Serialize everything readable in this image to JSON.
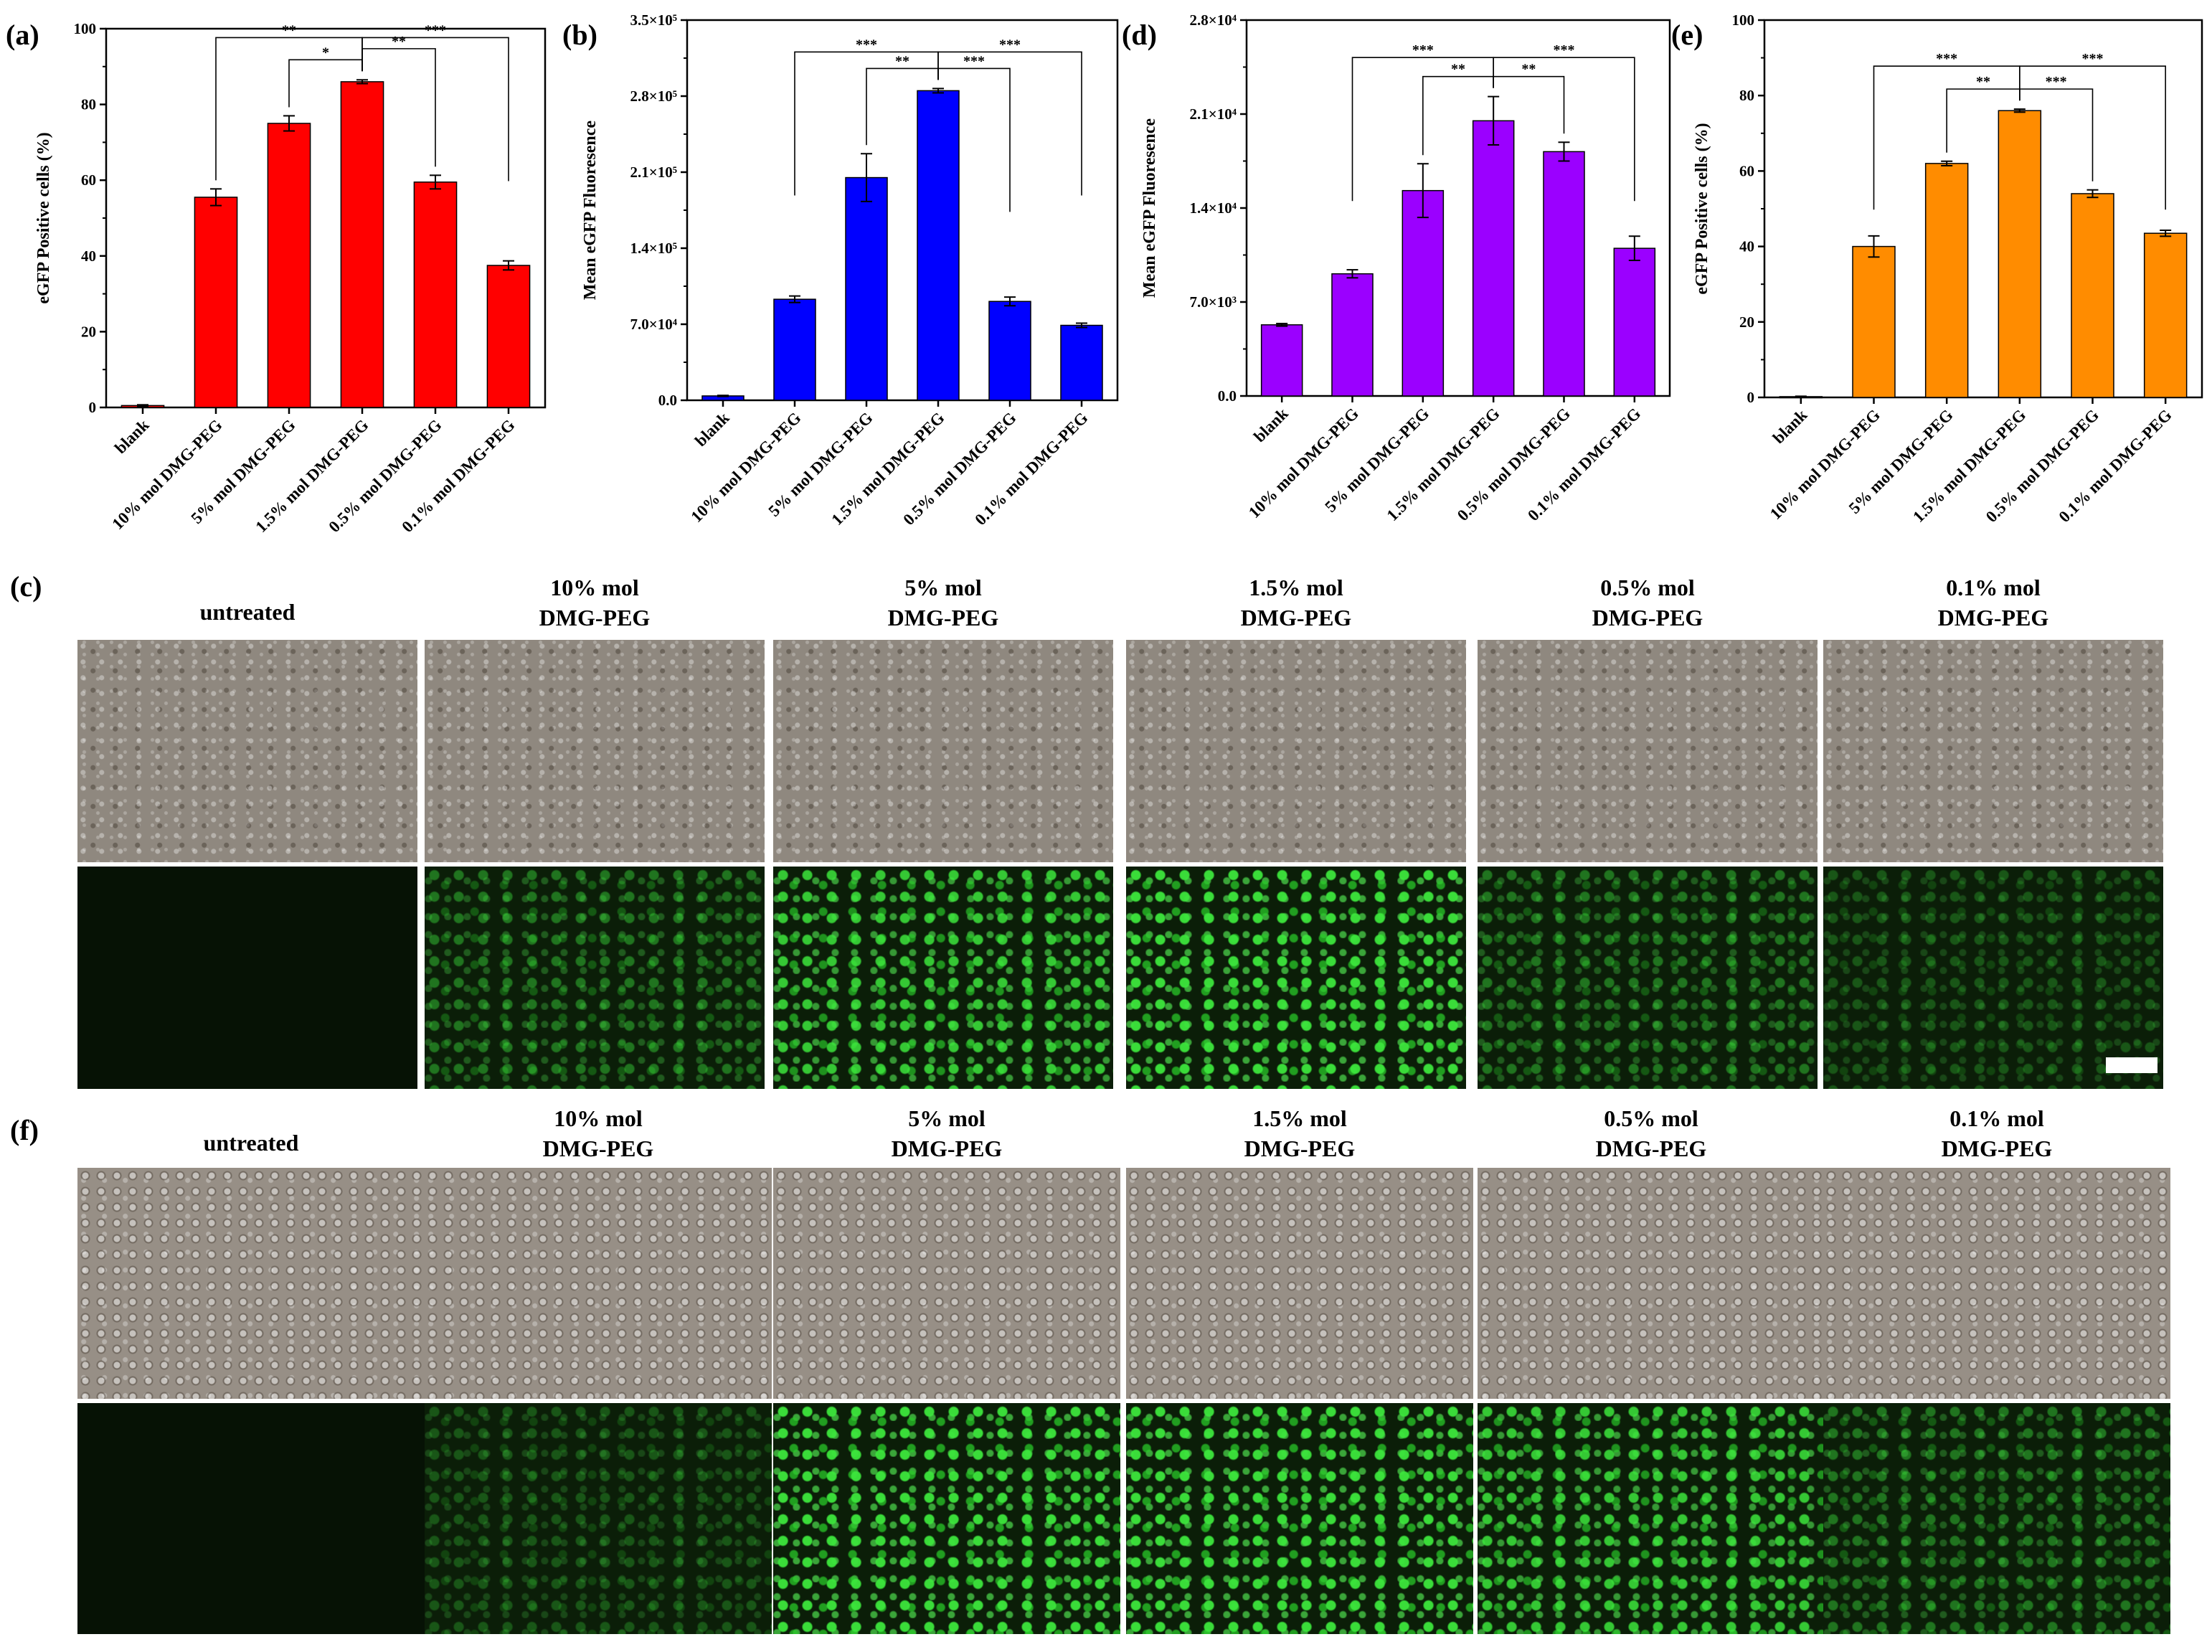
{
  "chart_data": [
    {
      "panel": "(a)",
      "type": "bar",
      "categories": [
        "blank",
        "10% mol DMG-PEG",
        "5% mol DMG-PEG",
        "1.5% mol DMG-PEG",
        "0.5% mol DMG-PEG",
        "0.1% mol DMG-PEG"
      ],
      "values": [
        0.5,
        55.5,
        75,
        86,
        59.5,
        37.5
      ],
      "errors": [
        0.2,
        2.2,
        2.0,
        0.5,
        1.8,
        1.2
      ],
      "ylabel": "eGFP Positive cells (%)",
      "ylim": [
        0,
        100
      ],
      "yticks": [
        0,
        20,
        40,
        60,
        80,
        100
      ],
      "ytick_labels": [
        "0",
        "20",
        "40",
        "60",
        "80",
        "100"
      ],
      "bar_color": "#ff0000",
      "significance": [
        {
          "from": 1,
          "to": 3,
          "label": "**",
          "level": 3
        },
        {
          "from": 2,
          "to": 3,
          "label": "*",
          "level": 1
        },
        {
          "from": 3,
          "to": 4,
          "label": "**",
          "level": 2
        },
        {
          "from": 3,
          "to": 5,
          "label": "***",
          "level": 3
        }
      ]
    },
    {
      "panel": "(b)",
      "type": "bar",
      "categories": [
        "blank",
        "10% mol DMG-PEG",
        "5% mol DMG-PEG",
        "1.5% mol DMG-PEG",
        "0.5% mol DMG-PEG",
        "0.1% mol DMG-PEG"
      ],
      "values": [
        4000,
        93000,
        205000,
        285000,
        91000,
        69000
      ],
      "errors": [
        500,
        3000,
        22000,
        2000,
        4000,
        2000
      ],
      "ylabel": "Mean eGFP Fluoresence",
      "ylim": [
        0,
        350000
      ],
      "yticks": [
        0,
        70000,
        140000,
        210000,
        280000,
        350000
      ],
      "ytick_labels": [
        "0.0",
        "7.0×10⁴",
        "1.4×10⁵",
        "2.1×10⁵",
        "2.8×10⁵",
        "3.5×10⁵"
      ],
      "bar_color": "#0000ff",
      "significance": [
        {
          "from": 1,
          "to": 3,
          "label": "***",
          "level": 2
        },
        {
          "from": 2,
          "to": 3,
          "label": "**",
          "level": 1
        },
        {
          "from": 3,
          "to": 4,
          "label": "***",
          "level": 1
        },
        {
          "from": 3,
          "to": 5,
          "label": "***",
          "level": 2
        }
      ]
    },
    {
      "panel": "(d)",
      "type": "bar",
      "categories": [
        "blank",
        "10% mol DMG-PEG",
        "5% mol DMG-PEG",
        "1.5% mol DMG-PEG",
        "0.5% mol DMG-PEG",
        "0.1% mol DMG-PEG"
      ],
      "values": [
        5300,
        9100,
        15300,
        20500,
        18200,
        11000
      ],
      "errors": [
        100,
        300,
        2000,
        1800,
        700,
        900
      ],
      "ylabel": "Mean eGFP Fluoresence",
      "ylim": [
        0,
        28000
      ],
      "yticks": [
        0,
        7000,
        14000,
        21000,
        28000
      ],
      "ytick_labels": [
        "0.0",
        "7.0×10³",
        "1.4×10⁴",
        "2.1×10⁴",
        "2.8×10⁴"
      ],
      "bar_color": "#9b00ff",
      "significance": [
        {
          "from": 1,
          "to": 3,
          "label": "***",
          "level": 2
        },
        {
          "from": 2,
          "to": 3,
          "label": "**",
          "level": 1
        },
        {
          "from": 3,
          "to": 4,
          "label": "**",
          "level": 1
        },
        {
          "from": 3,
          "to": 5,
          "label": "***",
          "level": 2
        }
      ]
    },
    {
      "panel": "(e)",
      "type": "bar",
      "categories": [
        "blank",
        "10% mol DMG-PEG",
        "5% mol DMG-PEG",
        "1.5% mol DMG-PEG",
        "0.5% mol DMG-PEG",
        "0.1% mol DMG-PEG"
      ],
      "values": [
        0.2,
        40,
        62,
        76,
        54,
        43.5
      ],
      "errors": [
        0.1,
        2.8,
        0.6,
        0.4,
        1.0,
        0.8
      ],
      "ylabel": "eGFP Positive cells (%)",
      "ylim": [
        0,
        100
      ],
      "yticks": [
        0,
        20,
        40,
        60,
        80,
        100
      ],
      "ytick_labels": [
        "0",
        "20",
        "40",
        "60",
        "80",
        "100"
      ],
      "bar_color": "#ff8c00",
      "significance": [
        {
          "from": 1,
          "to": 3,
          "label": "***",
          "level": 2
        },
        {
          "from": 2,
          "to": 3,
          "label": "**",
          "level": 1
        },
        {
          "from": 3,
          "to": 4,
          "label": "***",
          "level": 1
        },
        {
          "from": 3,
          "to": 5,
          "label": "***",
          "level": 2
        }
      ]
    }
  ],
  "image_panels": {
    "c": {
      "letter": "(c)",
      "columns": [
        {
          "line1": "untreated",
          "line2": ""
        },
        {
          "line1": "10% mol",
          "line2": "DMG-PEG"
        },
        {
          "line1": "5% mol",
          "line2": "DMG-PEG"
        },
        {
          "line1": "1.5% mol",
          "line2": "DMG-PEG"
        },
        {
          "line1": "0.5% mol",
          "line2": "DMG-PEG"
        },
        {
          "line1": "0.1% mol",
          "line2": "DMG-PEG"
        }
      ],
      "fluorescence_intensity": [
        0.0,
        0.45,
        0.9,
        1.0,
        0.45,
        0.3
      ]
    },
    "f": {
      "letter": "(f)",
      "columns": [
        {
          "line1": "untreated",
          "line2": ""
        },
        {
          "line1": "10% mol",
          "line2": "DMG-PEG"
        },
        {
          "line1": "5% mol",
          "line2": "DMG-PEG"
        },
        {
          "line1": "1.5% mol",
          "line2": "DMG-PEG"
        },
        {
          "line1": "0.5% mol",
          "line2": "DMG-PEG"
        },
        {
          "line1": "0.1% mol",
          "line2": "DMG-PEG"
        }
      ],
      "fluorescence_intensity": [
        0.0,
        0.3,
        1.0,
        1.0,
        0.9,
        0.45
      ]
    }
  }
}
